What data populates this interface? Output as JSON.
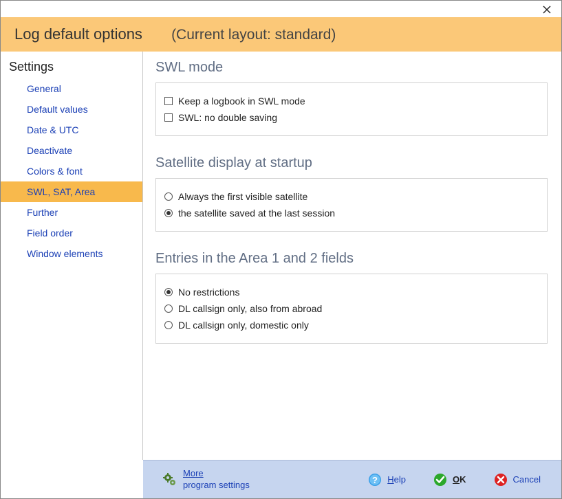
{
  "window": {
    "close_tooltip": "Close"
  },
  "header": {
    "title": "Log default options",
    "subtitle": "(Current layout: standard)"
  },
  "sidebar": {
    "title": "Settings",
    "items": [
      {
        "label": "General",
        "selected": false
      },
      {
        "label": "Default values",
        "selected": false
      },
      {
        "label": "Date & UTC",
        "selected": false
      },
      {
        "label": "Deactivate",
        "selected": false
      },
      {
        "label": "Colors & font",
        "selected": false
      },
      {
        "label": "SWL, SAT, Area",
        "selected": true
      },
      {
        "label": "Further",
        "selected": false
      },
      {
        "label": "Field order",
        "selected": false
      },
      {
        "label": "Window elements",
        "selected": false
      }
    ]
  },
  "sections": {
    "swl": {
      "title": "SWL mode",
      "options": [
        {
          "label": "Keep a logbook in SWL mode",
          "checked": false
        },
        {
          "label": "SWL: no double saving",
          "checked": false
        }
      ]
    },
    "sat": {
      "title": "Satellite display at startup",
      "options": [
        {
          "label": "Always the first visible satellite",
          "checked": false
        },
        {
          "label": "the satellite saved at the last session",
          "checked": true
        }
      ]
    },
    "area": {
      "title": "Entries in the Area 1 and 2 fields",
      "options": [
        {
          "label": "No restrictions",
          "checked": true
        },
        {
          "label": "DL callsign only, also from abroad",
          "checked": false
        },
        {
          "label": "DL callsign only, domestic only",
          "checked": false
        }
      ]
    }
  },
  "footer": {
    "more": {
      "line1": "More",
      "line2": "program settings"
    },
    "help": "Help",
    "ok": "OK",
    "cancel": "Cancel"
  },
  "colors": {
    "header_bg": "#fbc878",
    "sidebar_link": "#1a3fb5",
    "section_title": "#616e84",
    "footer_bg": "#c6d5ef",
    "radio_blue": "#2a6bbf"
  }
}
